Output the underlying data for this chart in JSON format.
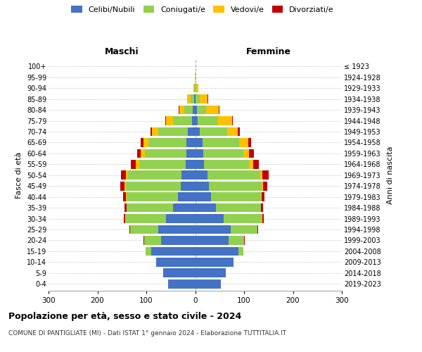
{
  "age_groups": [
    "0-4",
    "5-9",
    "10-14",
    "15-19",
    "20-24",
    "25-29",
    "30-34",
    "35-39",
    "40-44",
    "45-49",
    "50-54",
    "55-59",
    "60-64",
    "65-69",
    "70-74",
    "75-79",
    "80-84",
    "85-89",
    "90-94",
    "95-99",
    "100+"
  ],
  "birth_years": [
    "2019-2023",
    "2014-2018",
    "2009-2013",
    "2004-2008",
    "1999-2003",
    "1994-1998",
    "1989-1993",
    "1984-1988",
    "1979-1983",
    "1974-1978",
    "1969-1973",
    "1964-1968",
    "1959-1963",
    "1954-1958",
    "1949-1953",
    "1944-1948",
    "1939-1943",
    "1934-1938",
    "1929-1933",
    "1924-1928",
    "≤ 1923"
  ],
  "male_celibe": [
    55,
    65,
    80,
    90,
    70,
    75,
    60,
    45,
    35,
    30,
    28,
    20,
    18,
    18,
    15,
    7,
    5,
    2,
    0,
    0,
    0
  ],
  "male_coniugato": [
    0,
    0,
    0,
    12,
    35,
    58,
    82,
    95,
    105,
    112,
    110,
    95,
    85,
    78,
    60,
    38,
    18,
    8,
    2,
    0,
    0
  ],
  "male_vedovo": [
    0,
    0,
    0,
    0,
    0,
    0,
    1,
    1,
    2,
    3,
    4,
    6,
    8,
    10,
    14,
    14,
    10,
    6,
    2,
    1,
    0
  ],
  "male_divorziato": [
    0,
    0,
    0,
    0,
    1,
    2,
    3,
    4,
    5,
    8,
    10,
    10,
    8,
    5,
    3,
    2,
    1,
    0,
    0,
    0,
    0
  ],
  "fem_celibe": [
    52,
    62,
    78,
    88,
    68,
    72,
    58,
    42,
    32,
    28,
    25,
    18,
    16,
    15,
    10,
    5,
    3,
    1,
    0,
    0,
    0
  ],
  "fem_coniugata": [
    0,
    0,
    0,
    10,
    32,
    55,
    78,
    92,
    102,
    108,
    108,
    92,
    82,
    75,
    55,
    42,
    20,
    8,
    2,
    0,
    0
  ],
  "fem_vedova": [
    0,
    0,
    0,
    0,
    0,
    0,
    1,
    1,
    2,
    3,
    5,
    8,
    12,
    18,
    22,
    28,
    25,
    16,
    5,
    1,
    0
  ],
  "fem_divorziata": [
    0,
    0,
    0,
    0,
    1,
    2,
    3,
    4,
    6,
    9,
    12,
    12,
    10,
    6,
    4,
    2,
    1,
    1,
    0,
    0,
    0
  ],
  "colors": {
    "celibe": "#4472C4",
    "coniugato": "#92D050",
    "vedovo": "#FFC000",
    "divorziato": "#C00000"
  },
  "title": "Popolazione per età, sesso e stato civile - 2024",
  "subtitle": "COMUNE DI PANTIGLIATE (MI) - Dati ISTAT 1° gennaio 2024 - Elaborazione TUTTITALIA.IT",
  "xlabel_left": "Maschi",
  "xlabel_right": "Femmine",
  "ylabel": "Fasce di età",
  "ylabel_right": "Anni di nascita",
  "xlim": 300,
  "legend_labels": [
    "Celibi/Nubili",
    "Coniugati/e",
    "Vedovi/e",
    "Divorziati/e"
  ]
}
